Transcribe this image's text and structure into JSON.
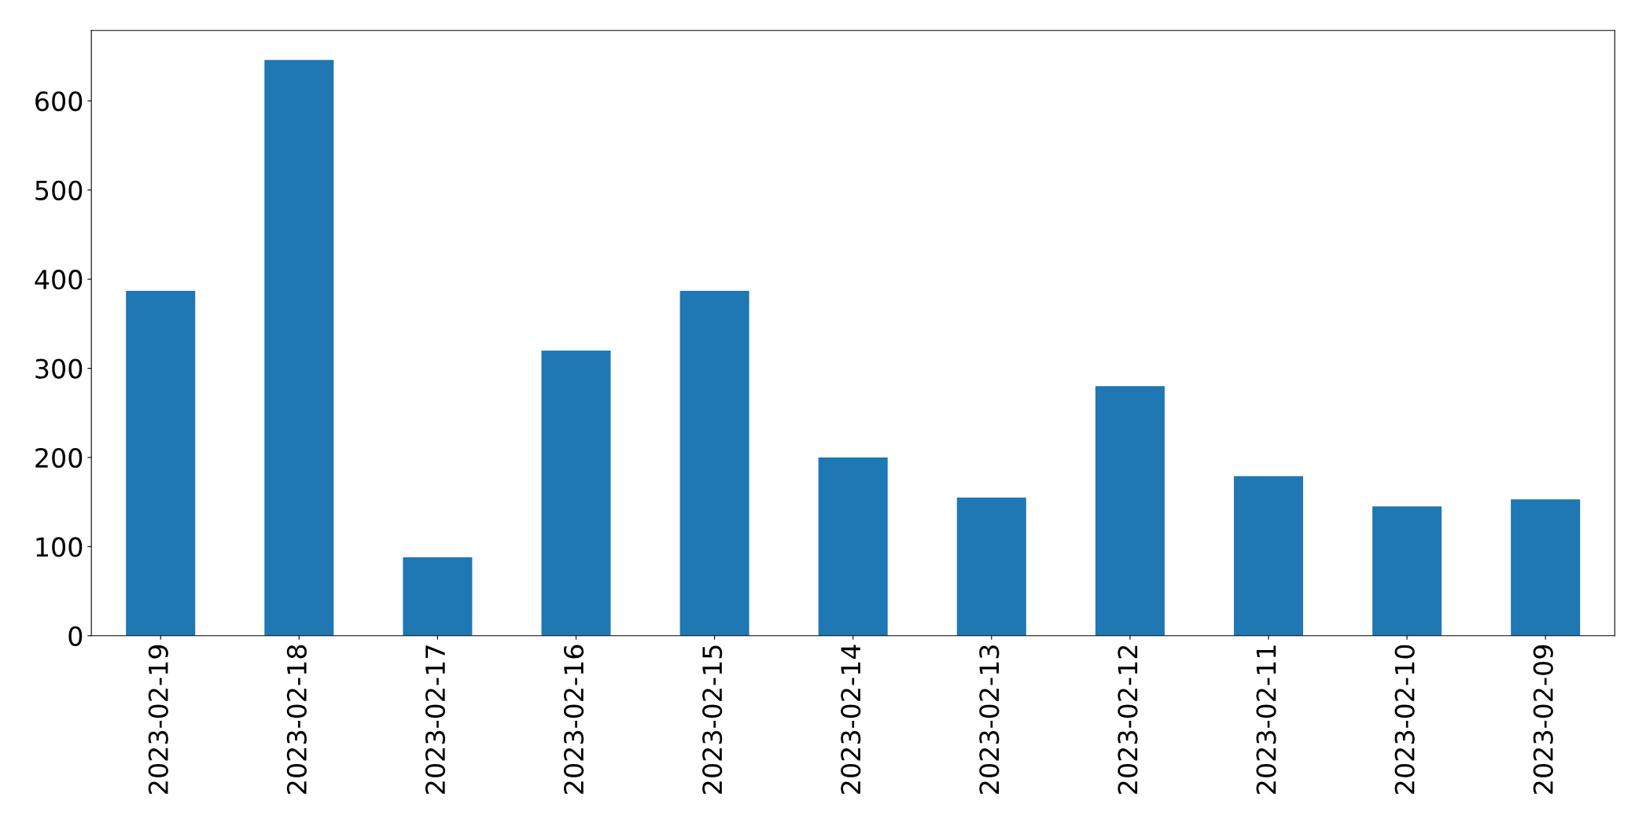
{
  "chart_data": {
    "type": "bar",
    "categories": [
      "2023-02-19",
      "2023-02-18",
      "2023-02-17",
      "2023-02-16",
      "2023-02-15",
      "2023-02-14",
      "2023-02-13",
      "2023-02-12",
      "2023-02-11",
      "2023-02-10",
      "2023-02-09"
    ],
    "values": [
      387,
      646,
      88,
      320,
      387,
      200,
      155,
      280,
      179,
      145,
      153
    ],
    "color": "#1f77b4",
    "ylim": [
      0,
      679
    ],
    "yticks": [
      0,
      100,
      200,
      300,
      400,
      500,
      600
    ],
    "grid": false,
    "legend": false
  }
}
